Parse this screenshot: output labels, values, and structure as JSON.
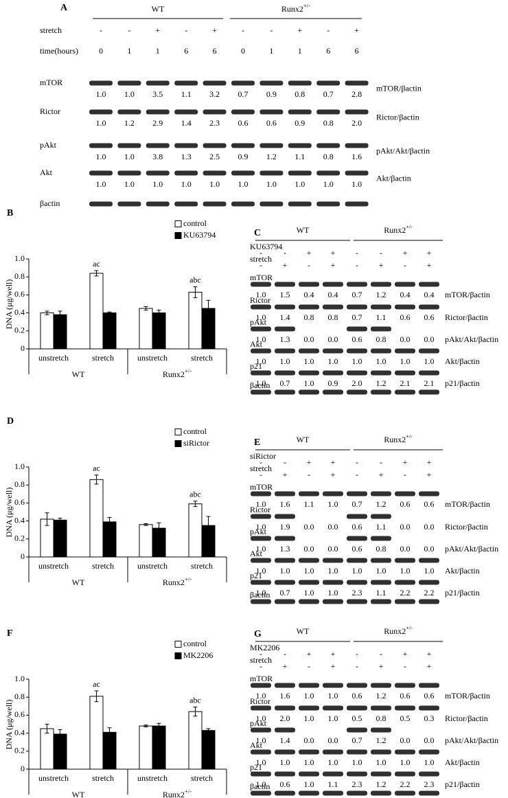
{
  "blots": [
    {
      "label": "A",
      "groups": [
        {
          "name": "WT"
        },
        {
          "name": "Runx2",
          "sup": "+/-"
        }
      ],
      "treatments": [
        {
          "name": "stretch",
          "values": [
            "-",
            "-",
            "+",
            "-",
            "+",
            "-",
            "-",
            "+",
            "-",
            "+"
          ]
        },
        {
          "name": "time(hours)",
          "values": [
            0,
            1,
            1,
            6,
            6,
            0,
            1,
            1,
            6,
            6
          ]
        }
      ],
      "rows": [
        {
          "name": "mTOR",
          "values": [
            "1.0",
            "1.0",
            "3.5",
            "1.1",
            "3.2",
            "0.7",
            "0.9",
            "0.8",
            "0.7",
            "2.8"
          ],
          "ratio": "mTOR/βactin"
        },
        {
          "name": "Rictor",
          "values": [
            "1.0",
            "1.2",
            "2.9",
            "1.4",
            "2.3",
            "0.6",
            "0.6",
            "0.9",
            "0.8",
            "2.0"
          ],
          "ratio": "Rictor/βactin"
        },
        {
          "name": "pAkt",
          "values": [
            "1.0",
            "1.0",
            "3.8",
            "1.3",
            "2.5",
            "0.9",
            "1.2",
            "1.1",
            "0.8",
            "1.6"
          ],
          "ratio": "pAkt/Akt/βactin"
        },
        {
          "name": "Akt",
          "values": [
            "1.0",
            "1.0",
            "1.0",
            "1.0",
            "1.0",
            "1.0",
            "1.0",
            "1.0",
            "1.0",
            "1.0"
          ],
          "ratio": "Akt/βactin"
        },
        {
          "name": "βactin"
        }
      ]
    },
    {
      "label": "C",
      "groups": [
        {
          "name": "WT"
        },
        {
          "name": "Runx2",
          "sup": "+/-"
        }
      ],
      "treatments": [
        {
          "name": "KU63794",
          "values": [
            "-",
            "-",
            "+",
            "+",
            "-",
            "-",
            "+",
            "+"
          ]
        },
        {
          "name": "stretch",
          "values": [
            "-",
            "+",
            "-",
            "+",
            "-",
            "+",
            "-",
            "+"
          ]
        }
      ],
      "rows": [
        {
          "name": "mTOR",
          "values": [
            "1.0",
            "1.5",
            "0.4",
            "0.4",
            "0.7",
            "1.2",
            "0.4",
            "0.4"
          ],
          "ratio": "mTOR/βactin"
        },
        {
          "name": "Rictor",
          "values": [
            "1.0",
            "1.4",
            "0.8",
            "0.8",
            "0.7",
            "1.1",
            "0.6",
            "0.6"
          ],
          "ratio": "Rictor/βactin"
        },
        {
          "name": "pAkt",
          "values": [
            "1.0",
            "1.3",
            "0.0",
            "0.0",
            "0.6",
            "0.8",
            "0.0",
            "0.0"
          ],
          "ratio": "pAkt/Akt/βactin"
        },
        {
          "name": "Akt",
          "values": [
            "1.0",
            "1.0",
            "1.0",
            "1.0",
            "1.0",
            "1.0",
            "1.0",
            "1.0"
          ],
          "ratio": "Akt/βactin"
        },
        {
          "name": "p21",
          "values": [
            "1.0",
            "0.7",
            "1.0",
            "0.9",
            "2.0",
            "1.2",
            "2.1",
            "2.1"
          ],
          "ratio": "p21/βactin"
        },
        {
          "name": "βactin"
        }
      ]
    },
    {
      "label": "E",
      "groups": [
        {
          "name": "WT"
        },
        {
          "name": "Runx2",
          "sup": "+/-"
        }
      ],
      "treatments": [
        {
          "name": "siRictor",
          "values": [
            "-",
            "-",
            "+",
            "+",
            "-",
            "-",
            "+",
            "+"
          ]
        },
        {
          "name": "stretch",
          "values": [
            "-",
            "+",
            "-",
            "+",
            "-",
            "+",
            "-",
            "+"
          ]
        }
      ],
      "rows": [
        {
          "name": "mTOR",
          "values": [
            "1.0",
            "1.6",
            "1.1",
            "1.0",
            "0.7",
            "1.2",
            "0.6",
            "0.6"
          ],
          "ratio": "mTOR/βactin"
        },
        {
          "name": "Rictor",
          "values": [
            "1.0",
            "1.9",
            "0.0",
            "0.0",
            "0.6",
            "1.1",
            "0.0",
            "0.0"
          ],
          "ratio": "Rictor/βactin"
        },
        {
          "name": "pAkt",
          "values": [
            "1.0",
            "1.3",
            "0.0",
            "0.0",
            "0.6",
            "0.8",
            "0.0",
            "0.0"
          ],
          "ratio": "pAkt/Akt/βactin"
        },
        {
          "name": "Akt",
          "values": [
            "1.0",
            "1.0",
            "1.0",
            "1.0",
            "1.0",
            "1.0",
            "1.0",
            "1.0"
          ],
          "ratio": "Akt/βactin"
        },
        {
          "name": "p21",
          "values": [
            "1.0",
            "0.7",
            "1.0",
            "1.0",
            "2.3",
            "1.1",
            "2.2",
            "2.2"
          ],
          "ratio": "p21/βactin"
        },
        {
          "name": "βactin"
        }
      ]
    },
    {
      "label": "G",
      "groups": [
        {
          "name": "WT"
        },
        {
          "name": "Runx2",
          "sup": "+/-"
        }
      ],
      "treatments": [
        {
          "name": "MK2206",
          "values": [
            "-",
            "-",
            "+",
            "+",
            "-",
            "-",
            "+",
            "+"
          ]
        },
        {
          "name": "stretch",
          "values": [
            "-",
            "+",
            "-",
            "+",
            "-",
            "+",
            "-",
            "+"
          ]
        }
      ],
      "rows": [
        {
          "name": "mTOR",
          "values": [
            "1.0",
            "1.6",
            "1.0",
            "1.0",
            "0.6",
            "1.2",
            "0.6",
            "0.6"
          ],
          "ratio": "mTOR/βactin"
        },
        {
          "name": "Rictor",
          "values": [
            "1.0",
            "2.0",
            "1.0",
            "1.0",
            "0.5",
            "0.8",
            "0.5",
            "0.3"
          ],
          "ratio": "Rictor/βactin"
        },
        {
          "name": "pAkt",
          "values": [
            "1.0",
            "1.4",
            "0.0",
            "0.0",
            "0.7",
            "1.2",
            "0.0",
            "0.0"
          ],
          "ratio": "pAkt/Akt/βactin"
        },
        {
          "name": "Akt",
          "values": [
            "1.0",
            "1.0",
            "1.0",
            "1.0",
            "1.0",
            "1.0",
            "1.0",
            "1.0"
          ],
          "ratio": "Akt/βactin"
        },
        {
          "name": "p21",
          "values": [
            "1.0",
            "0.6",
            "1.0",
            "1.1",
            "2.3",
            "1.2",
            "2.2",
            "2.3"
          ],
          "ratio": "p21/βactin"
        },
        {
          "name": "βactin"
        }
      ]
    }
  ],
  "chart_data": [
    {
      "panel": "B",
      "type": "bar",
      "ylabel": "DNA (μg/well)",
      "categories": [
        "unstretch",
        "stretch",
        "unstretch",
        "stretch"
      ],
      "groups": [
        {
          "name": "WT"
        },
        {
          "name": "Runx2",
          "sup": "+/-"
        }
      ],
      "series": [
        {
          "name": "control",
          "color": "#ffffff",
          "values": [
            0.4,
            0.84,
            0.45,
            0.63
          ],
          "errors": [
            0.02,
            0.03,
            0.02,
            0.06
          ]
        },
        {
          "name": "KU63794",
          "color": "#000000",
          "values": [
            0.38,
            0.4,
            0.4,
            0.45
          ],
          "errors": [
            0.04,
            0.01,
            0.03,
            0.09
          ]
        }
      ],
      "annotations": [
        null,
        "ac",
        null,
        "abc"
      ],
      "ylim": [
        0,
        1
      ],
      "yticks": [
        0,
        0.2,
        0.4,
        0.6,
        0.8,
        {
          "value": 1,
          "label": "1.0"
        }
      ],
      "legend": "upper right"
    },
    {
      "panel": "D",
      "type": "bar",
      "ylabel": "DNA (μg/well)",
      "categories": [
        "unstretch",
        "stretch",
        "unstretch",
        "stretch"
      ],
      "groups": [
        {
          "name": "WT"
        },
        {
          "name": "Runx2",
          "sup": "+/-"
        }
      ],
      "series": [
        {
          "name": "control",
          "color": "#ffffff",
          "values": [
            0.42,
            0.86,
            0.36,
            0.59
          ],
          "errors": [
            0.07,
            0.05,
            0.01,
            0.03
          ]
        },
        {
          "name": "siRictor",
          "color": "#000000",
          "values": [
            0.41,
            0.39,
            0.32,
            0.35
          ],
          "errors": [
            0.02,
            0.05,
            0.06,
            0.1
          ]
        }
      ],
      "annotations": [
        null,
        "ac",
        null,
        "abc"
      ],
      "ylim": [
        0,
        1
      ],
      "yticks": [
        0,
        0.2,
        0.4,
        0.6,
        0.8,
        {
          "value": 1,
          "label": "1.0"
        }
      ],
      "legend": "upper right"
    },
    {
      "panel": "F",
      "type": "bar",
      "ylabel": "DNA (μg/well)",
      "categories": [
        "unstretch",
        "stretch",
        "unstretch",
        "stretch"
      ],
      "groups": [
        {
          "name": "WT"
        },
        {
          "name": "Runx2",
          "sup": "+/-"
        }
      ],
      "series": [
        {
          "name": "control",
          "color": "#ffffff",
          "values": [
            0.45,
            0.81,
            0.48,
            0.64
          ],
          "errors": [
            0.05,
            0.06,
            0.01,
            0.05
          ]
        },
        {
          "name": "MK2206",
          "color": "#000000",
          "values": [
            0.39,
            0.41,
            0.48,
            0.43
          ],
          "errors": [
            0.05,
            0.05,
            0.03,
            0.02
          ]
        }
      ],
      "annotations": [
        null,
        "ac",
        null,
        "abc"
      ],
      "ylim": [
        0,
        1
      ],
      "yticks": [
        0,
        0.2,
        0.4,
        0.6,
        0.8,
        {
          "value": 1,
          "label": "1.0"
        }
      ],
      "legend": "upper right"
    }
  ]
}
